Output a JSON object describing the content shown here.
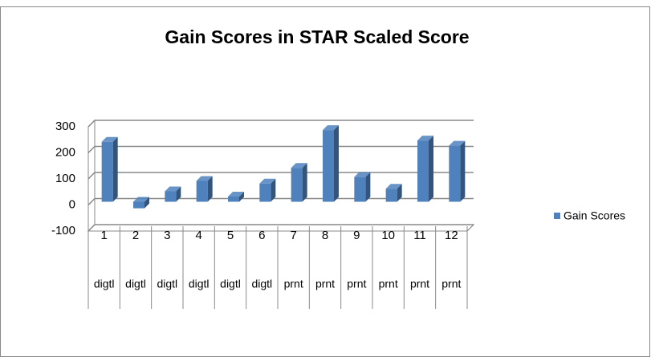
{
  "chart_data": {
    "type": "bar3d",
    "title": "Gain Scores in STAR Scaled Score",
    "categories": [
      "1",
      "2",
      "3",
      "4",
      "5",
      "6",
      "7",
      "8",
      "9",
      "10",
      "11",
      "12"
    ],
    "groups": [
      "digtl",
      "digtl",
      "digtl",
      "digtl",
      "digtl",
      "digtl",
      "prnt",
      "prnt",
      "prnt",
      "prnt",
      "prnt",
      "prnt"
    ],
    "series": [
      {
        "name": "Gain Scores",
        "color": "#4f81bd",
        "values": [
          230,
          -25,
          40,
          80,
          20,
          70,
          130,
          275,
          95,
          50,
          235,
          215
        ]
      }
    ],
    "ylim": [
      -100,
      300
    ],
    "yticks": [
      -100,
      0,
      100,
      200,
      300
    ],
    "grid": true,
    "legend": "right"
  }
}
